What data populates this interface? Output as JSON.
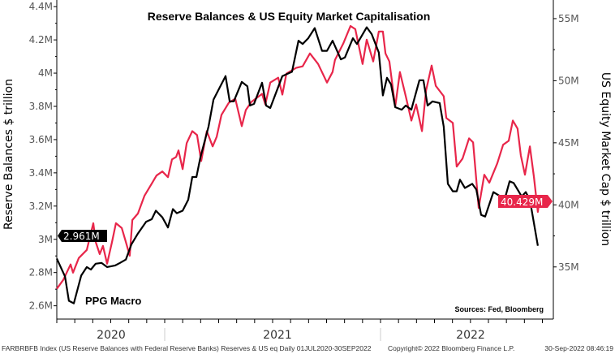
{
  "chart_data": {
    "type": "line",
    "title": "Reserve Balances & US Equity Market Capitalisation",
    "annotation_left": "PPG Macro",
    "source": "Sources: Fed, Bloomberg",
    "x_tick_labels": [
      "2020",
      "2021",
      "2022"
    ],
    "x_range": [
      "01JUL2020",
      "30SEP2022"
    ],
    "left_axis": {
      "label": "Reserve Balances $ trillion",
      "ylim": [
        2.52,
        4.44
      ],
      "ticks": [
        2.6,
        2.8,
        3.0,
        3.2,
        3.4,
        3.6,
        3.8,
        4.0,
        4.2,
        4.4
      ],
      "tick_labels": [
        "2.6M",
        "2.8M",
        "3M",
        "3.2M",
        "3.4M",
        "3.6M",
        "3.8M",
        "4M",
        "4.2M",
        "4.4M"
      ]
    },
    "right_axis": {
      "label": "US Equity Market Cap $ trillion",
      "ylim": [
        30.8,
        56.5
      ],
      "ticks": [
        35,
        40,
        45,
        50,
        55
      ],
      "tick_labels": [
        "35M",
        "40M",
        "45M",
        "50M",
        "55M"
      ]
    },
    "grid": false,
    "series": [
      {
        "axis": "left",
        "color": "#000000",
        "last_value_label": "2.961M",
        "x": [
          2020.5,
          2020.538,
          2020.556,
          2020.579,
          2020.613,
          2020.639,
          2020.658,
          2020.68,
          2020.707,
          2020.733,
          2020.771,
          2020.793,
          2020.82,
          2020.846,
          2020.876,
          2020.914,
          2020.94,
          2020.959,
          2020.989,
          2021.015,
          2021.038,
          2021.056,
          2021.083,
          2021.109,
          2021.128,
          2021.147,
          2021.165,
          2021.203,
          2021.226,
          2021.282,
          2021.301,
          2021.32,
          2021.357,
          2021.383,
          2021.395,
          2021.414,
          2021.451,
          2021.47,
          2021.489,
          2021.545,
          2021.59,
          2021.62,
          2021.639,
          2021.665,
          2021.695,
          2021.729,
          2021.752,
          2021.778,
          2021.816,
          2021.835,
          2021.872,
          2021.891,
          2021.936,
          2021.959,
          2021.992,
          2022.011,
          2022.03,
          2022.049,
          2022.068,
          2022.098,
          2022.117,
          2022.143,
          2022.18,
          2022.199,
          2022.218,
          2022.241,
          2022.274,
          2022.293,
          2022.312,
          2022.335,
          2022.353,
          2022.368,
          2022.391,
          2022.425,
          2022.444,
          2022.466,
          2022.485,
          2022.523,
          2022.556,
          2022.579,
          2022.598,
          2022.617,
          2022.654,
          2022.673,
          2022.692,
          2022.729
        ],
        "y": [
          2.884,
          2.777,
          2.63,
          2.615,
          2.782,
          2.833,
          2.818,
          2.853,
          2.858,
          2.833,
          2.843,
          2.858,
          2.878,
          2.97,
          3.035,
          3.106,
          3.121,
          3.172,
          3.132,
          3.071,
          3.182,
          3.157,
          3.172,
          3.238,
          3.375,
          3.375,
          3.491,
          3.678,
          3.84,
          3.982,
          3.83,
          3.83,
          3.947,
          3.921,
          3.805,
          3.815,
          3.942,
          3.805,
          3.79,
          3.982,
          4.008,
          4.195,
          4.175,
          4.21,
          4.271,
          4.134,
          4.134,
          4.195,
          4.083,
          4.094,
          4.21,
          4.175,
          4.276,
          4.235,
          4.124,
          3.866,
          3.972,
          3.932,
          3.795,
          3.78,
          3.805,
          3.78,
          3.957,
          3.957,
          3.805,
          3.83,
          3.82,
          3.678,
          3.334,
          3.289,
          3.289,
          3.359,
          3.309,
          3.334,
          3.299,
          3.147,
          3.137,
          3.284,
          3.258,
          3.258,
          3.349,
          3.339,
          3.258,
          3.284,
          3.238,
          2.961
        ]
      },
      {
        "axis": "right",
        "color": "#e8264a",
        "last_value_label": "40.429M",
        "x": [
          2020.5,
          2020.53,
          2020.564,
          2020.575,
          2020.602,
          2020.639,
          2020.669,
          2020.68,
          2020.699,
          2020.714,
          2020.733,
          2020.756,
          2020.774,
          2020.801,
          2020.82,
          2020.838,
          2020.85,
          2020.876,
          2020.906,
          2020.94,
          2020.962,
          2020.989,
          2021.015,
          2021.034,
          2021.053,
          2021.064,
          2021.083,
          2021.102,
          2021.128,
          2021.15,
          2021.169,
          2021.195,
          2021.222,
          2021.241,
          2021.263,
          2021.297,
          2021.327,
          2021.357,
          2021.376,
          2021.402,
          2021.451,
          2021.466,
          2021.489,
          2021.526,
          2021.545,
          2021.564,
          2021.609,
          2021.639,
          2021.673,
          2021.711,
          2021.752,
          2021.778,
          2021.789,
          2021.827,
          2021.861,
          2021.883,
          2021.917,
          2021.936,
          2021.966,
          2021.992,
          2022.011,
          2022.023,
          2022.041,
          2022.068,
          2022.09,
          2022.117,
          2022.143,
          2022.165,
          2022.192,
          2022.211,
          2022.237,
          2022.256,
          2022.293,
          2022.305,
          2022.335,
          2022.353,
          2022.38,
          2022.41,
          2022.429,
          2022.455,
          2022.481,
          2022.504,
          2022.541,
          2022.568,
          2022.594,
          2022.613,
          2022.635,
          2022.65,
          2022.669,
          2022.692,
          2022.711,
          2022.729,
          2022.737
        ],
        "y": [
          33.24,
          33.96,
          35.2,
          34.54,
          35.72,
          36.37,
          38.52,
          37.02,
          36.04,
          36.69,
          35.26,
          37.02,
          38.52,
          38.13,
          37.02,
          35.91,
          38.78,
          39.3,
          40.73,
          41.71,
          42.36,
          42.69,
          42.23,
          43.66,
          43.86,
          44.38,
          42.88,
          44.97,
          45.94,
          45.62,
          43.53,
          45.94,
          44.71,
          45.49,
          47.25,
          48.22,
          48.55,
          46.34,
          47.64,
          48.29,
          48.94,
          48.09,
          49.85,
          50.24,
          48.88,
          50.57,
          51.03,
          51.16,
          52.2,
          51.35,
          49.85,
          50.7,
          51.68,
          52.98,
          54.41,
          54.15,
          51.35,
          53.31,
          51.55,
          53.96,
          53.96,
          52.2,
          51.55,
          47.9,
          50.7,
          48.75,
          46.79,
          48.09,
          45.94,
          49.2,
          51.22,
          49.59,
          48.75,
          46.99,
          46.6,
          43.08,
          43.73,
          45.36,
          45.03,
          39.76,
          42.43,
          41.78,
          43.34,
          44.84,
          45.16,
          46.79,
          46.14,
          43.99,
          42.43,
          44.71,
          42.23,
          39.43,
          40.43
        ]
      }
    ]
  },
  "footer": {
    "index_description": "FARBRBFB Index (US Reserve Balances with Federal Reserve Banks) Reserves & US eq  Daily 01JUL2020-30SEP2022",
    "copyright": "Copyright© 2022 Bloomberg Finance L.P.",
    "timestamp": "30-Sep-2022 08:46:19"
  }
}
